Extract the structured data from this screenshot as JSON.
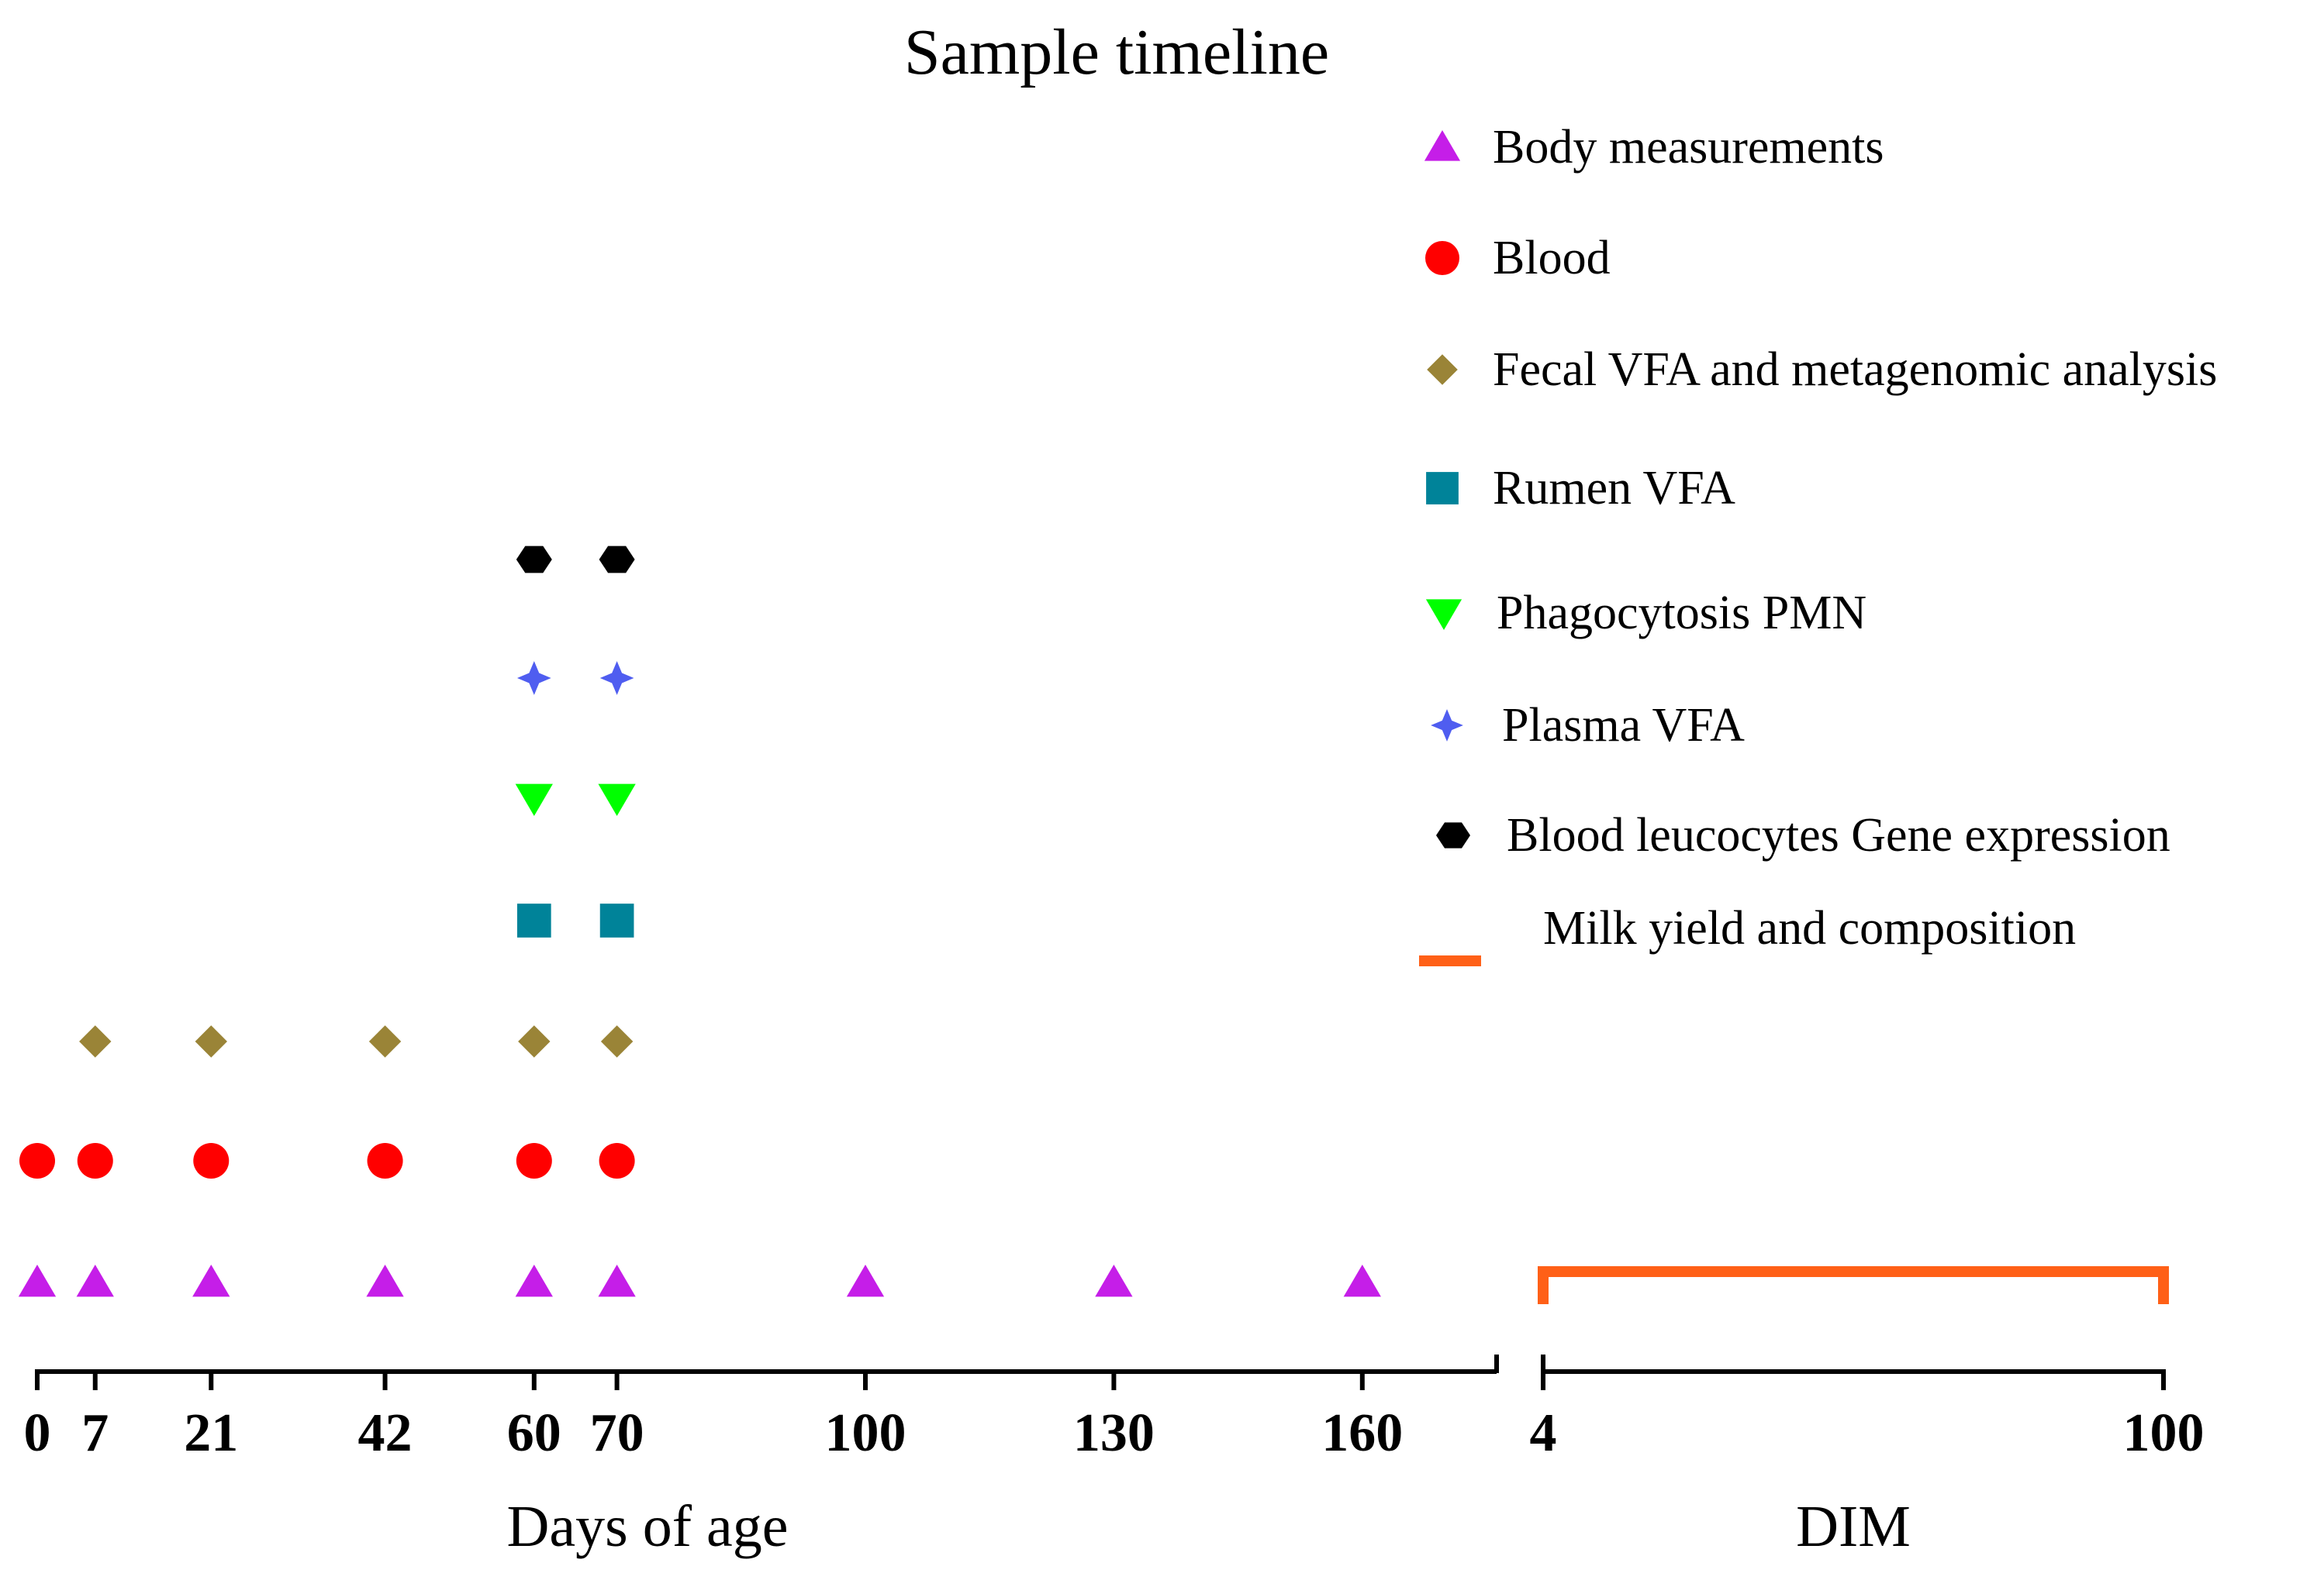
{
  "chart_data": {
    "type": "scatter",
    "title": "Sample timeline",
    "panels": [
      {
        "id": "days",
        "xlabel": "Days of age",
        "xlim": [
          0,
          168
        ],
        "ticks": [
          0,
          7,
          21,
          42,
          60,
          70,
          100,
          130,
          160
        ]
      },
      {
        "id": "dim",
        "xlabel": "DIM",
        "xlim": [
          4,
          100
        ],
        "ticks": [
          4,
          100
        ]
      }
    ],
    "series": [
      {
        "name": "Body measurements",
        "marker": "triangle-up",
        "color": "#C51EE8",
        "row": 0,
        "x": [
          0,
          7,
          21,
          42,
          60,
          70,
          100,
          130,
          160
        ]
      },
      {
        "name": "Blood",
        "marker": "circle",
        "color": "#FF0000",
        "row": 1,
        "x": [
          0,
          7,
          21,
          42,
          60,
          70
        ]
      },
      {
        "name": "Fecal VFA and metagenomic analysis",
        "marker": "diamond",
        "color": "#9A8437",
        "row": 2,
        "x": [
          7,
          21,
          42,
          60,
          70
        ]
      },
      {
        "name": "Rumen VFA",
        "marker": "square",
        "color": "#008399",
        "row": 3,
        "x": [
          60,
          70
        ]
      },
      {
        "name": "Phagocytosis PMN",
        "marker": "triangle-down",
        "color": "#00FF00",
        "row": 4,
        "x": [
          60,
          70
        ]
      },
      {
        "name": "Plasma VFA",
        "marker": "star4",
        "color": "#4F5DF0",
        "row": 5,
        "x": [
          60,
          70
        ]
      },
      {
        "name": "Blood leucocytes Gene expression",
        "marker": "hexagon",
        "color": "#000000",
        "row": 6,
        "x": [
          60,
          70
        ]
      },
      {
        "name": "Milk yield and composition",
        "marker": "bracket",
        "color": "#FF6017",
        "row": 0,
        "panel": "dim",
        "range": [
          4,
          100
        ]
      }
    ]
  }
}
